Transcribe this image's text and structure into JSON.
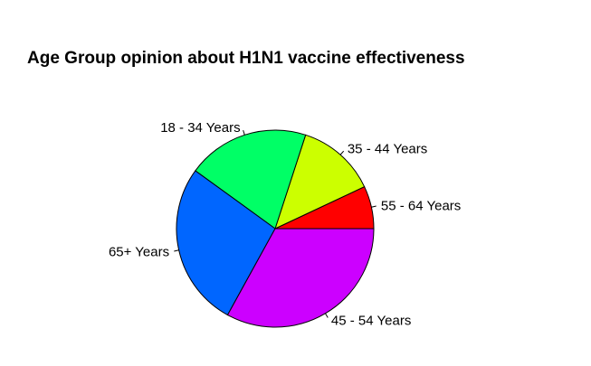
{
  "chart_data": {
    "type": "pie",
    "title": "Age Group opinion about H1N1 vaccine effectiveness",
    "slices": [
      {
        "label": "55 - 64 Years",
        "value": 7,
        "color": "#FF0000"
      },
      {
        "label": "35 - 44 Years",
        "value": 13,
        "color": "#CCFF00"
      },
      {
        "label": "18 - 34 Years",
        "value": 20,
        "color": "#00FF66"
      },
      {
        "label": "65+ Years",
        "value": 27,
        "color": "#0066FF"
      },
      {
        "label": "45 - 54 Years",
        "value": 33,
        "color": "#CC00FF"
      }
    ],
    "start_angle_deg": 0,
    "direction": "counterclockwise",
    "legend": "none"
  }
}
